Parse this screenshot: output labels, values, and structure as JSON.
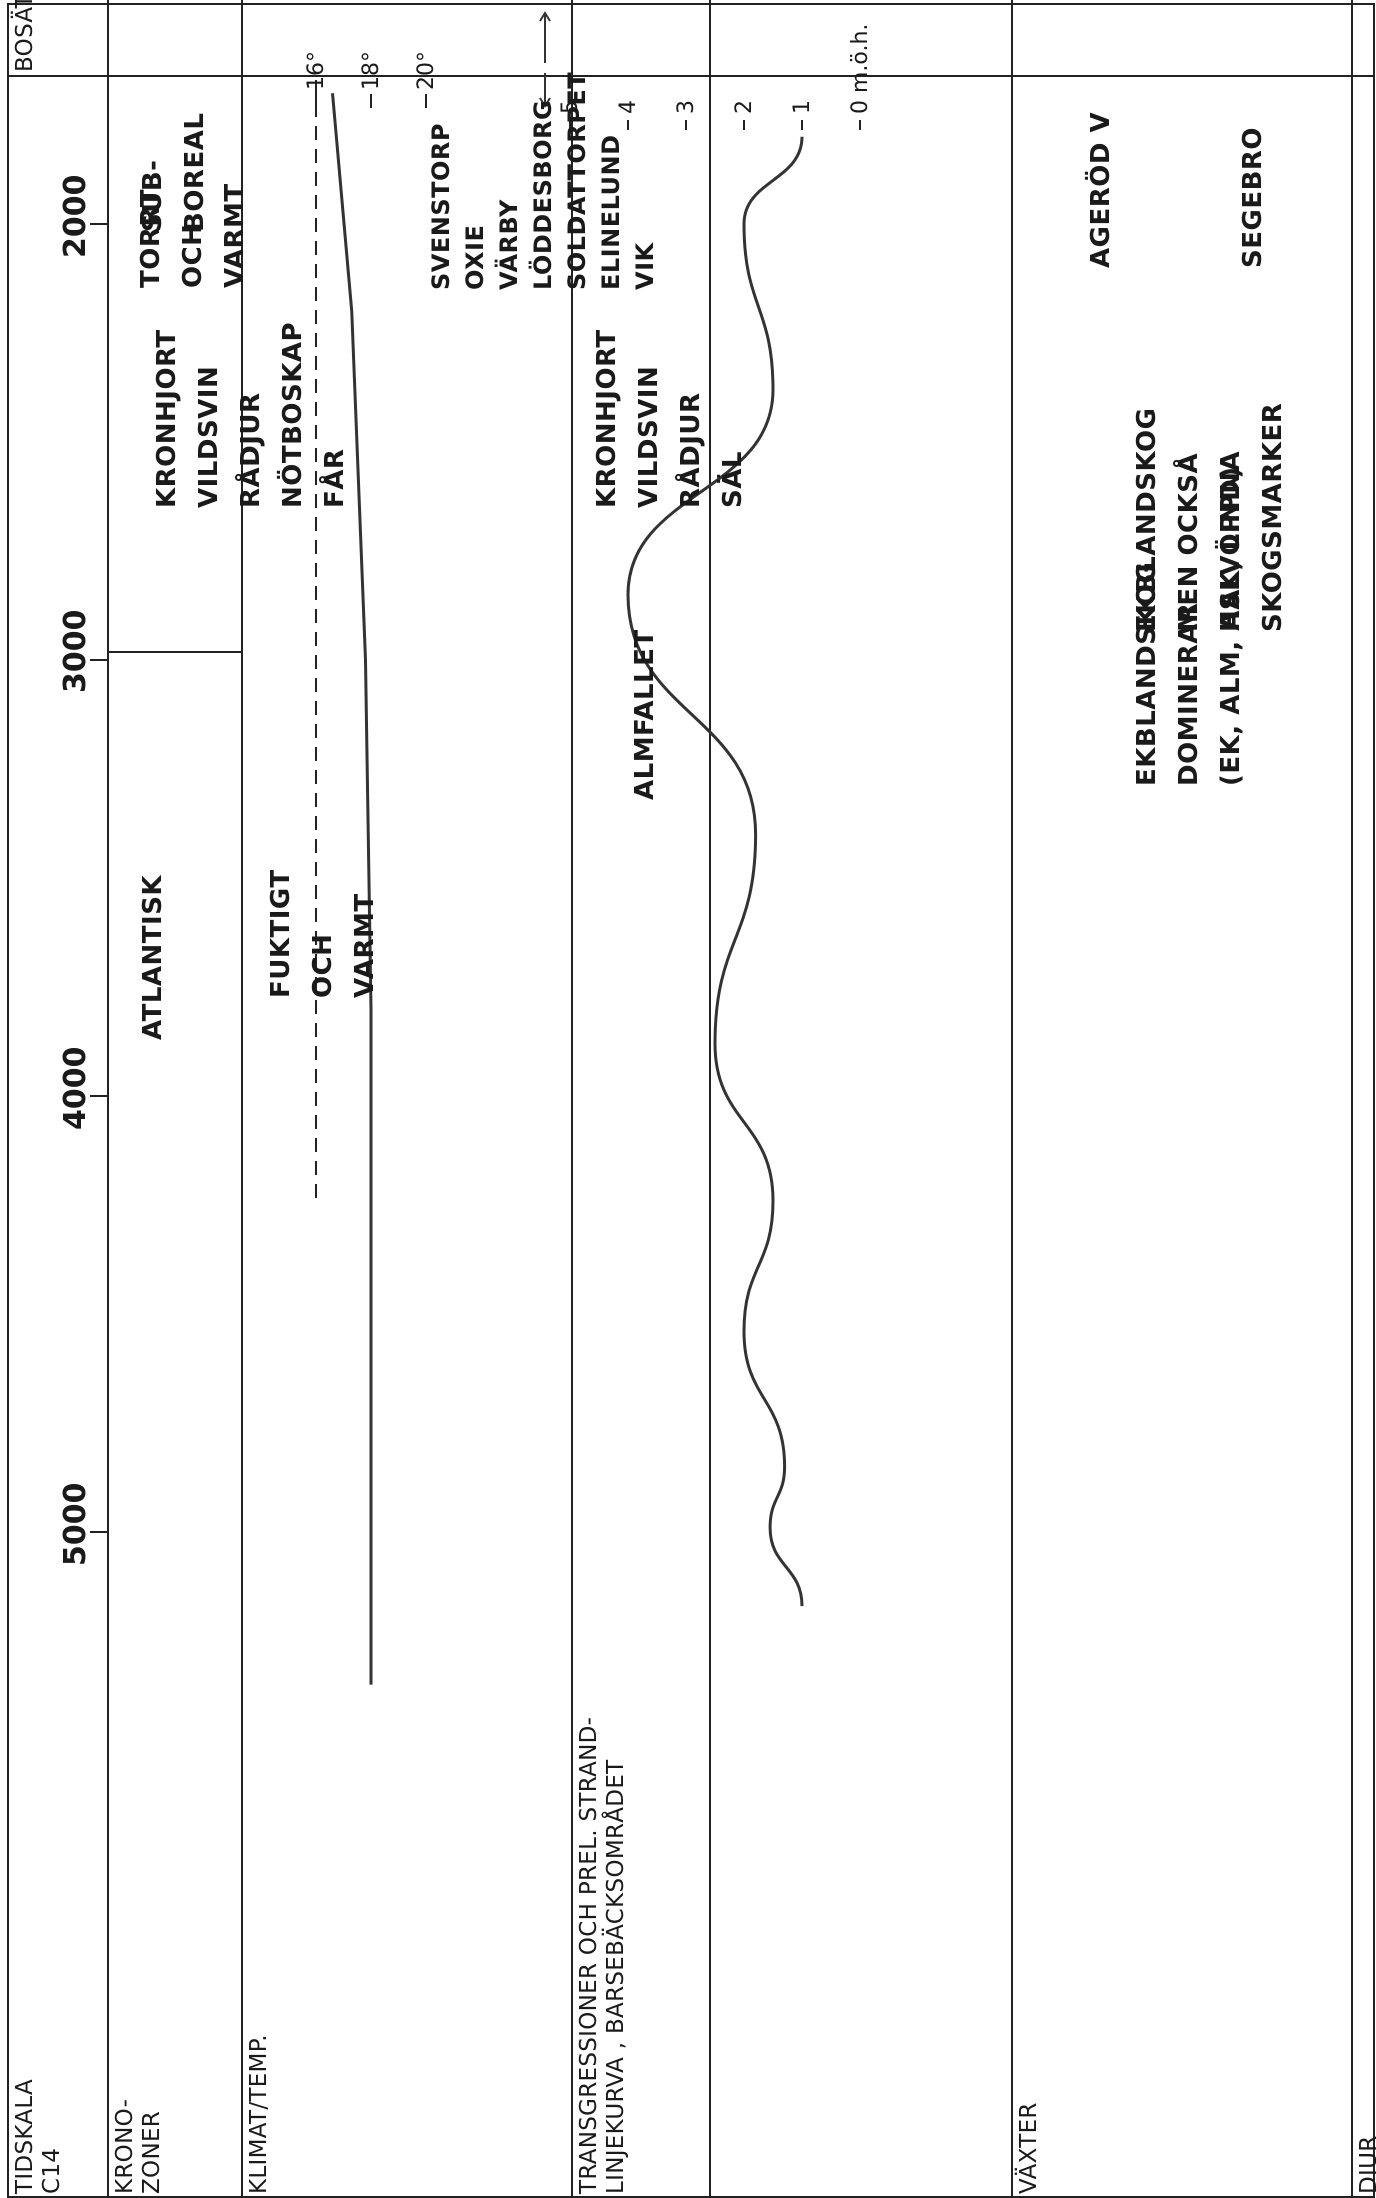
{
  "headers": {
    "tidskala": [
      "TIDSKALA",
      "C14"
    ],
    "kronozoner": [
      "KRONO-",
      "ZONER"
    ],
    "klimat": [
      "KLIMAT/TEMP."
    ],
    "transgressioner": [
      "TRANSGRESSIONER OCH PREL. STRAND-",
      "LINJEKURVA , BARSEBÄCKSOMRÅDET"
    ],
    "vaxter": [
      "VÄXTER"
    ],
    "djur": [
      "DJUR"
    ],
    "bosattning": [
      "BOSÄTTNING"
    ]
  },
  "tidskala": {
    "labels": [
      "2000",
      "3000",
      "4000",
      "5000"
    ]
  },
  "kronozoner": {
    "subboreal": [
      "SUB-",
      "BOREAL"
    ],
    "atlantisk": [
      "ATLANTISK"
    ]
  },
  "klimat": {
    "torrt": [
      "TORRT",
      "OCH",
      "VARMT"
    ],
    "fuktigt": [
      "FUKTIGT",
      "OCH",
      "VARMT"
    ],
    "temp_labels": [
      "16°",
      "18°",
      "20°"
    ]
  },
  "strandlinje": {
    "scale_labels": [
      "0 m.ö.h.",
      "1",
      "2",
      "3",
      "4",
      "5"
    ]
  },
  "vaxter": {
    "group1": [
      "EKBLANDSKOG",
      "MEN OCKSÅ",
      "HALVÖPPNA",
      "SKOGSMARKER"
    ],
    "almfallet": "ALMFALLET",
    "group2": [
      "EKBLANDSKOG",
      "DOMINERAR",
      "(EK, ALM, ASK, LIND)"
    ]
  },
  "djur": {
    "group1": [
      "KRONHJORT",
      "VILDSVIN",
      "RÅDJUR",
      "NÖTBOSKAP",
      "FÅR"
    ],
    "group2": [
      "KRONHJORT",
      "VILDSVIN",
      "RÅDJUR",
      "SÄL"
    ]
  },
  "bosattning": {
    "group1": [
      "SVENSTORP",
      "OXIE",
      "VÄRBY",
      "LÖDDESBORG",
      "SOLDATTORPET",
      "ELINELUND",
      "VIK"
    ],
    "agerod": "AGERÖD V",
    "segebro": "SEGEBRO",
    "arrow": "left-right-arrow"
  },
  "chart_data": {
    "type": "line",
    "series": [
      {
        "x_years": [
          1800,
          2000,
          2380,
          2850,
          3400,
          3880,
          4240,
          4540,
          4850,
          4990,
          5170
        ],
        "depth_m": [
          1.0,
          2.0,
          1.5,
          4.0,
          1.8,
          2.5,
          1.5,
          2.0,
          1.3,
          1.55,
          1.0
        ]
      },
      {
        "x_years": [
          1700,
          2200,
          3000,
          3800,
          4500,
          5350
        ],
        "temp_c": [
          16.6,
          17.3,
          17.8,
          18.0,
          18.0,
          18.0
        ]
      }
    ]
  }
}
